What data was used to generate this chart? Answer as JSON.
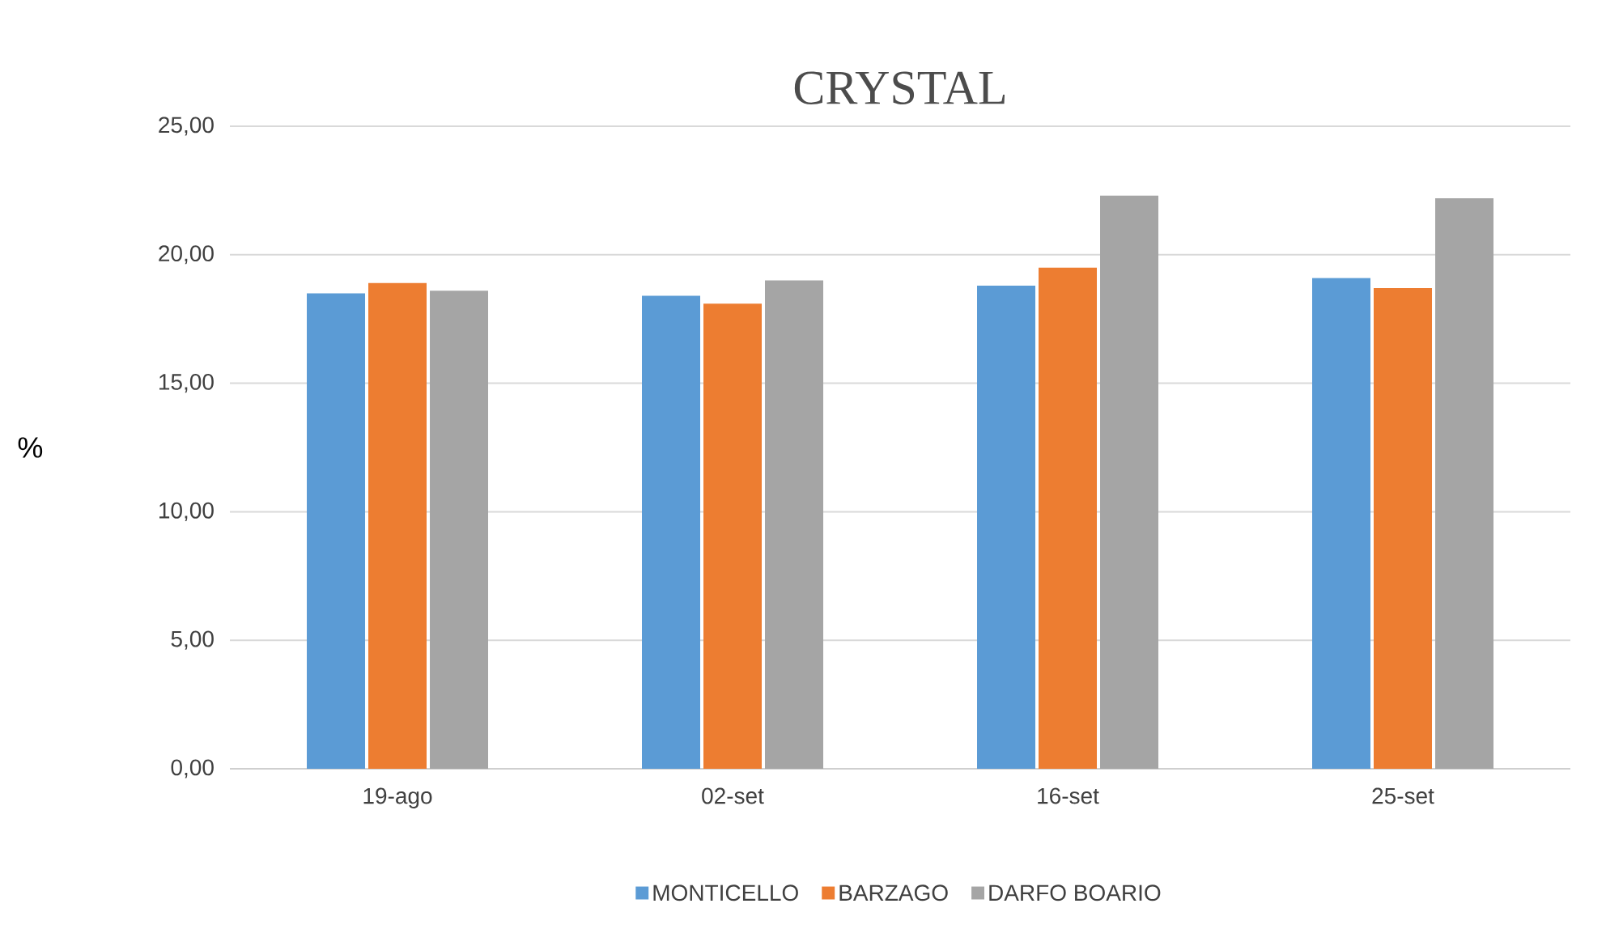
{
  "chart_data": {
    "type": "bar",
    "title": "CRYSTAL",
    "ylabel": "%",
    "categories": [
      "19-ago",
      "02-set",
      "16-set",
      "25-set"
    ],
    "series": [
      {
        "name": "MONTICELLO",
        "color": "#5b9bd5",
        "values": [
          18.5,
          18.4,
          18.8,
          19.1
        ]
      },
      {
        "name": "BARZAGO",
        "color": "#ed7d31",
        "values": [
          18.9,
          18.1,
          19.5,
          18.7
        ]
      },
      {
        "name": "DARFO BOARIO",
        "color": "#a5a5a5",
        "values": [
          18.6,
          19.0,
          22.3,
          22.2
        ]
      }
    ],
    "ylim": [
      0,
      25
    ],
    "yticks": [
      {
        "value": 0,
        "label": "0,00"
      },
      {
        "value": 5,
        "label": "5,00"
      },
      {
        "value": 10,
        "label": "10,00"
      },
      {
        "value": 15,
        "label": "15,00"
      },
      {
        "value": 20,
        "label": "20,00"
      },
      {
        "value": 25,
        "label": "25,00"
      }
    ],
    "grid": "y",
    "legend": "bottom"
  }
}
